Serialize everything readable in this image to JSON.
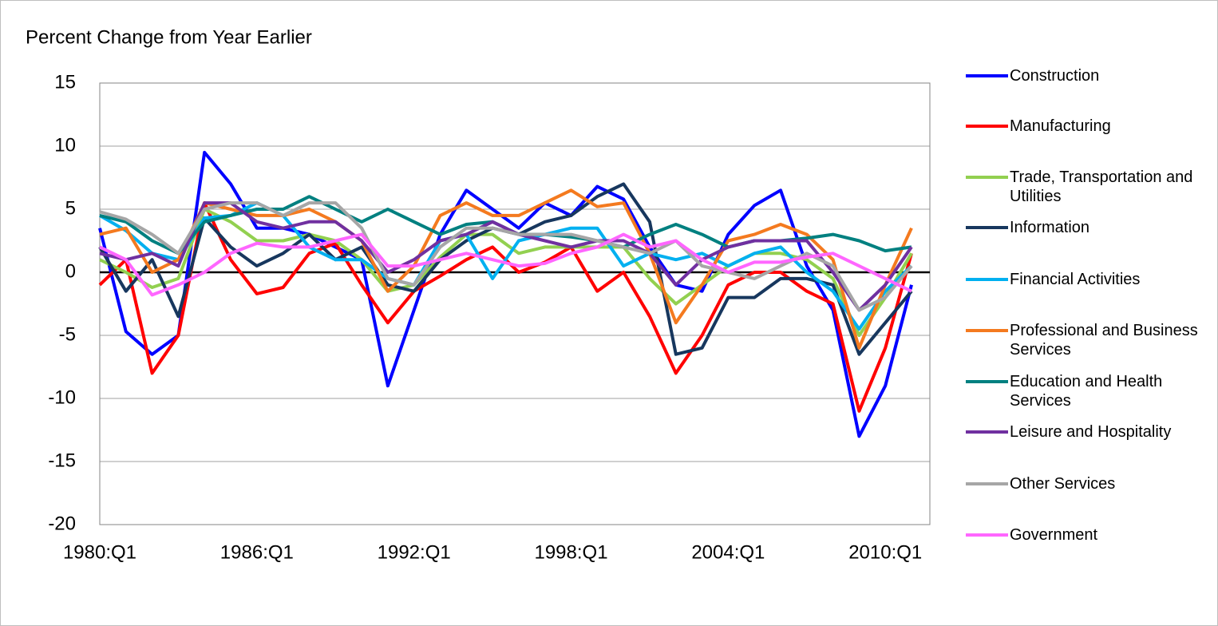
{
  "chart_data": {
    "type": "line",
    "title": "Percent Change from Year Earlier",
    "categories": [
      "1980:Q1",
      null,
      null,
      null,
      null,
      null,
      "1986:Q1",
      null,
      null,
      null,
      null,
      null,
      "1992:Q1",
      null,
      null,
      null,
      null,
      null,
      "1998:Q1",
      null,
      null,
      null,
      null,
      null,
      "2004:Q1",
      null,
      null,
      null,
      null,
      null,
      "2010:Q1",
      null
    ],
    "ylim": [
      -20,
      15
    ],
    "yticks": [
      -20,
      -15,
      -10,
      -5,
      0,
      5,
      10,
      15
    ],
    "grid": true,
    "series": [
      {
        "name": "Construction",
        "color": "#0000ff",
        "values": [
          3.5,
          -4.7,
          -6.5,
          -5,
          9.5,
          7,
          3.5,
          3.5,
          3,
          2,
          1,
          -9,
          -3,
          3,
          6.5,
          5,
          3.5,
          5.5,
          4.5,
          6.8,
          5.8,
          2,
          -1,
          -1.5,
          3,
          5.3,
          6.5,
          0.5,
          -3,
          -13,
          -9,
          -1
        ]
      },
      {
        "name": "Manufacturing",
        "color": "#ff0000",
        "values": [
          -1,
          1,
          -8,
          -5,
          5.5,
          1,
          -1.7,
          -1.2,
          1.5,
          2.3,
          -1,
          -4,
          -1.5,
          -0.3,
          1,
          2,
          0,
          0.8,
          2,
          -1.5,
          0,
          -3.5,
          -8,
          -5,
          -1,
          0,
          0,
          -1.5,
          -2.5,
          -11,
          -6,
          1.5
        ]
      },
      {
        "name": "Trade, Transportation and Utilities",
        "color": "#92d050",
        "values": [
          1,
          0,
          -1.2,
          -0.5,
          5,
          4,
          2.5,
          2.5,
          3,
          2.5,
          1,
          -1.5,
          -1,
          1.2,
          3,
          3,
          1.5,
          2,
          2,
          2,
          2,
          -0.5,
          -2.5,
          -1,
          0.5,
          1.5,
          1.5,
          1,
          -0.5,
          -5,
          -2,
          1.5
        ]
      },
      {
        "name": "Information",
        "color": "#17375e",
        "values": [
          2,
          -1.5,
          1,
          -3.5,
          4.3,
          2,
          0.5,
          1.5,
          3,
          1,
          2,
          -1,
          -1.5,
          1,
          2.5,
          3.5,
          3,
          4,
          4.5,
          6,
          7,
          4,
          -6.5,
          -6,
          -2,
          -2,
          -0.5,
          -0.5,
          -1,
          -6.5,
          -4,
          -1.5
        ]
      },
      {
        "name": "Financial Activities",
        "color": "#00b0f0",
        "values": [
          4.5,
          3.3,
          1.5,
          1,
          4.3,
          4.5,
          5.5,
          4.5,
          2,
          1,
          1,
          -0.5,
          -1,
          2.5,
          3,
          -0.5,
          2.5,
          3,
          3.5,
          3.5,
          0.5,
          1.5,
          1,
          1.5,
          0.5,
          1.5,
          2,
          0,
          -1.5,
          -4.5,
          -1.5,
          0.5
        ]
      },
      {
        "name": "Professional and Business Services",
        "color": "#f47a1f",
        "values": [
          3,
          3.5,
          0,
          1,
          5.5,
          5,
          4.5,
          4.5,
          5,
          4,
          2.5,
          -1.5,
          0.5,
          4.5,
          5.5,
          4.5,
          4.5,
          5.5,
          6.5,
          5.2,
          5.5,
          1.5,
          -4,
          -1,
          2.5,
          3,
          3.8,
          3,
          1,
          -6,
          -1,
          3.5
        ]
      },
      {
        "name": "Education and Health Services",
        "color": "#008080",
        "values": [
          4.5,
          4,
          2.5,
          1.5,
          4,
          4.5,
          5,
          5,
          6,
          5,
          4,
          5,
          4,
          3,
          3.8,
          4,
          3,
          3,
          2.8,
          2.5,
          2,
          3,
          3.8,
          3,
          2,
          2.5,
          2.5,
          2.7,
          3,
          2.5,
          1.7,
          2
        ]
      },
      {
        "name": "Leisure and Hospitality",
        "color": "#7030a0",
        "values": [
          1.5,
          1,
          1.5,
          0.5,
          5.5,
          5.5,
          4,
          3.5,
          4,
          4,
          2.5,
          0,
          1,
          2.5,
          3,
          4,
          3,
          2.5,
          2,
          2.5,
          2.5,
          1.5,
          -1,
          1,
          2,
          2.5,
          2.5,
          2.5,
          0,
          -3,
          -1,
          2
        ]
      },
      {
        "name": "Other Services",
        "color": "#a6a6a6",
        "values": [
          4.8,
          4.2,
          3,
          1.5,
          5,
          5.5,
          5.5,
          4.5,
          5.5,
          5.5,
          3.5,
          -0.5,
          -1,
          2,
          3.5,
          3.5,
          3,
          3,
          3,
          2.5,
          2,
          1.5,
          2.5,
          0.5,
          0,
          -0.5,
          0.5,
          1.5,
          0.5,
          -3,
          -2,
          0.5
        ]
      },
      {
        "name": "Government",
        "color": "#ff66ff",
        "values": [
          2,
          1,
          -1.8,
          -1,
          0,
          1.5,
          2.3,
          2,
          2,
          2.5,
          3,
          0.5,
          0.5,
          1,
          1.5,
          1,
          0.5,
          0.7,
          1.5,
          2,
          3,
          2,
          2.5,
          1,
          0,
          0.8,
          0.8,
          1.2,
          1.5,
          0.5,
          -0.5,
          -1.5
        ]
      }
    ]
  }
}
